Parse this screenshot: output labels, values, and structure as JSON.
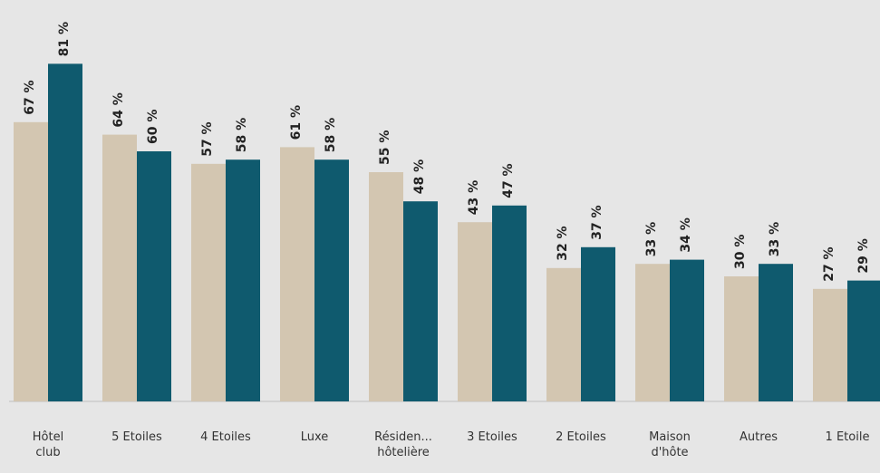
{
  "chart_data": {
    "type": "bar",
    "categories": [
      [
        "Hôtel",
        "club"
      ],
      [
        "5 Etoiles"
      ],
      [
        "4 Etoiles"
      ],
      [
        "Luxe"
      ],
      [
        "Résiden...",
        "hôtelière"
      ],
      [
        "3 Etoiles"
      ],
      [
        "2 Etoiles"
      ],
      [
        "Maison",
        "d'hôte"
      ],
      [
        "Autres"
      ],
      [
        "1 Etoile"
      ]
    ],
    "series": [
      {
        "color": "#d3c6b1",
        "values": [
          67,
          64,
          57,
          61,
          55,
          43,
          32,
          33,
          30,
          27
        ],
        "labels": [
          "67 %",
          "64 %",
          "57 %",
          "61 %",
          "55 %",
          "43 %",
          "32 %",
          "33 %",
          "30 %",
          "27 %"
        ]
      },
      {
        "color": "#0f5a6e",
        "values": [
          81,
          60,
          58,
          58,
          48,
          47,
          37,
          34,
          33,
          29
        ],
        "labels": [
          "81 %",
          "60 %",
          "58 %",
          "58 %",
          "48 %",
          "47 %",
          "37 %",
          "34 %",
          "33 %",
          "29 %"
        ]
      }
    ],
    "ylim": [
      0,
      85
    ],
    "grid": false,
    "legend": "none"
  },
  "colors": {
    "background": "#e6e6e6",
    "baseline": "#bdbdbd"
  }
}
